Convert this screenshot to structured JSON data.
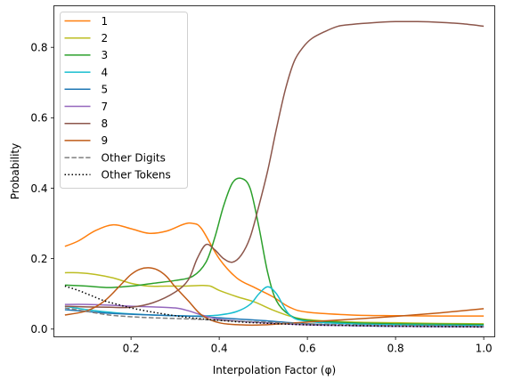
{
  "chart_data": {
    "type": "line",
    "xlabel": "Interpolation Factor (φ)",
    "ylabel": "Probability",
    "xlim": [
      0.025,
      1.025
    ],
    "ylim": [
      -0.022,
      0.918
    ],
    "xticks": [
      0.2,
      0.4,
      0.6,
      0.8,
      1.0
    ],
    "xtick_labels": [
      "0.2",
      "0.4",
      "0.6",
      "0.8",
      "1.0"
    ],
    "yticks": [
      0.0,
      0.2,
      0.4,
      0.6,
      0.8
    ],
    "ytick_labels": [
      "0.0",
      "0.2",
      "0.4",
      "0.6",
      "0.8"
    ],
    "grid": false,
    "legend_position": "upper-left",
    "series": [
      {
        "name": "1",
        "color": "#ff7f0e",
        "style": "solid",
        "x": [
          0.05,
          0.08,
          0.12,
          0.16,
          0.2,
          0.24,
          0.28,
          0.32,
          0.34,
          0.36,
          0.4,
          0.44,
          0.48,
          0.52,
          0.56,
          0.6,
          0.7,
          0.8,
          0.9,
          1.0
        ],
        "y": [
          0.235,
          0.25,
          0.28,
          0.296,
          0.285,
          0.272,
          0.278,
          0.298,
          0.3,
          0.285,
          0.2,
          0.145,
          0.118,
          0.093,
          0.062,
          0.048,
          0.04,
          0.038,
          0.037,
          0.037
        ]
      },
      {
        "name": "2",
        "color": "#bcbd22",
        "style": "solid",
        "x": [
          0.05,
          0.08,
          0.12,
          0.16,
          0.2,
          0.24,
          0.28,
          0.32,
          0.36,
          0.38,
          0.4,
          0.44,
          0.48,
          0.52,
          0.56,
          0.6,
          0.7,
          0.8,
          0.9,
          1.0
        ],
        "y": [
          0.16,
          0.16,
          0.155,
          0.145,
          0.13,
          0.122,
          0.122,
          0.122,
          0.124,
          0.122,
          0.11,
          0.092,
          0.077,
          0.055,
          0.037,
          0.027,
          0.02,
          0.018,
          0.016,
          0.015
        ]
      },
      {
        "name": "3",
        "color": "#2ca02c",
        "style": "solid",
        "x": [
          0.05,
          0.1,
          0.15,
          0.2,
          0.25,
          0.3,
          0.34,
          0.37,
          0.39,
          0.41,
          0.43,
          0.45,
          0.47,
          0.49,
          0.51,
          0.53,
          0.56,
          0.6,
          0.7,
          0.8,
          0.9,
          1.0
        ],
        "y": [
          0.125,
          0.122,
          0.118,
          0.122,
          0.13,
          0.138,
          0.15,
          0.19,
          0.26,
          0.35,
          0.415,
          0.428,
          0.4,
          0.29,
          0.16,
          0.08,
          0.04,
          0.025,
          0.018,
          0.015,
          0.014,
          0.013
        ]
      },
      {
        "name": "4",
        "color": "#17becf",
        "style": "solid",
        "x": [
          0.05,
          0.1,
          0.15,
          0.2,
          0.25,
          0.3,
          0.35,
          0.4,
          0.44,
          0.47,
          0.49,
          0.51,
          0.53,
          0.56,
          0.6,
          0.7,
          0.8,
          0.9,
          1.0
        ],
        "y": [
          0.065,
          0.055,
          0.048,
          0.043,
          0.04,
          0.038,
          0.037,
          0.04,
          0.05,
          0.07,
          0.1,
          0.12,
          0.1,
          0.04,
          0.022,
          0.015,
          0.012,
          0.011,
          0.01
        ]
      },
      {
        "name": "5",
        "color": "#1f77b4",
        "style": "solid",
        "x": [
          0.05,
          0.1,
          0.15,
          0.2,
          0.25,
          0.3,
          0.35,
          0.4,
          0.45,
          0.5,
          0.6,
          0.7,
          0.8,
          0.9,
          1.0
        ],
        "y": [
          0.055,
          0.05,
          0.045,
          0.042,
          0.04,
          0.038,
          0.036,
          0.032,
          0.028,
          0.024,
          0.015,
          0.01,
          0.008,
          0.007,
          0.006
        ]
      },
      {
        "name": "7",
        "color": "#9467bd",
        "style": "solid",
        "x": [
          0.05,
          0.1,
          0.15,
          0.2,
          0.25,
          0.3,
          0.33,
          0.36,
          0.4,
          0.45,
          0.5,
          0.6,
          0.7,
          0.8,
          0.9,
          1.0
        ],
        "y": [
          0.07,
          0.07,
          0.068,
          0.065,
          0.063,
          0.06,
          0.052,
          0.04,
          0.028,
          0.022,
          0.018,
          0.012,
          0.01,
          0.008,
          0.007,
          0.006
        ]
      },
      {
        "name": "8",
        "color": "#8c564b",
        "style": "solid",
        "x": [
          0.05,
          0.1,
          0.15,
          0.2,
          0.25,
          0.3,
          0.33,
          0.35,
          0.37,
          0.39,
          0.41,
          0.43,
          0.45,
          0.47,
          0.49,
          0.51,
          0.53,
          0.55,
          0.57,
          0.59,
          0.61,
          0.64,
          0.67,
          0.7,
          0.75,
          0.8,
          0.85,
          0.9,
          0.95,
          1.0
        ],
        "y": [
          0.065,
          0.063,
          0.062,
          0.062,
          0.075,
          0.105,
          0.14,
          0.2,
          0.24,
          0.225,
          0.2,
          0.19,
          0.21,
          0.26,
          0.35,
          0.45,
          0.57,
          0.68,
          0.76,
          0.8,
          0.825,
          0.845,
          0.86,
          0.865,
          0.87,
          0.873,
          0.873,
          0.871,
          0.867,
          0.86
        ]
      },
      {
        "name": "9",
        "color": "#bf5b17",
        "style": "solid",
        "x": [
          0.05,
          0.1,
          0.14,
          0.18,
          0.2,
          0.22,
          0.24,
          0.26,
          0.28,
          0.3,
          0.33,
          0.36,
          0.4,
          0.45,
          0.5,
          0.6,
          0.7,
          0.8,
          0.9,
          1.0
        ],
        "y": [
          0.04,
          0.052,
          0.08,
          0.13,
          0.155,
          0.17,
          0.174,
          0.168,
          0.15,
          0.12,
          0.08,
          0.04,
          0.018,
          0.012,
          0.012,
          0.02,
          0.028,
          0.036,
          0.046,
          0.058
        ]
      },
      {
        "name": "Other Digits",
        "color": "#7f7f7f",
        "style": "dashed",
        "x": [
          0.05,
          0.1,
          0.15,
          0.2,
          0.25,
          0.3,
          0.35,
          0.4,
          0.45,
          0.5,
          0.6,
          0.7,
          0.8,
          0.9,
          1.0
        ],
        "y": [
          0.06,
          0.05,
          0.04,
          0.035,
          0.032,
          0.03,
          0.028,
          0.025,
          0.022,
          0.02,
          0.015,
          0.012,
          0.01,
          0.009,
          0.008
        ]
      },
      {
        "name": "Other Tokens",
        "color": "#000000",
        "style": "dotted",
        "x": [
          0.05,
          0.08,
          0.11,
          0.14,
          0.17,
          0.2,
          0.25,
          0.3,
          0.35,
          0.4,
          0.45,
          0.5,
          0.6,
          0.7,
          0.8,
          0.9,
          1.0
        ],
        "y": [
          0.122,
          0.11,
          0.095,
          0.08,
          0.07,
          0.06,
          0.048,
          0.038,
          0.03,
          0.025,
          0.02,
          0.017,
          0.012,
          0.01,
          0.008,
          0.007,
          0.006
        ]
      }
    ]
  }
}
